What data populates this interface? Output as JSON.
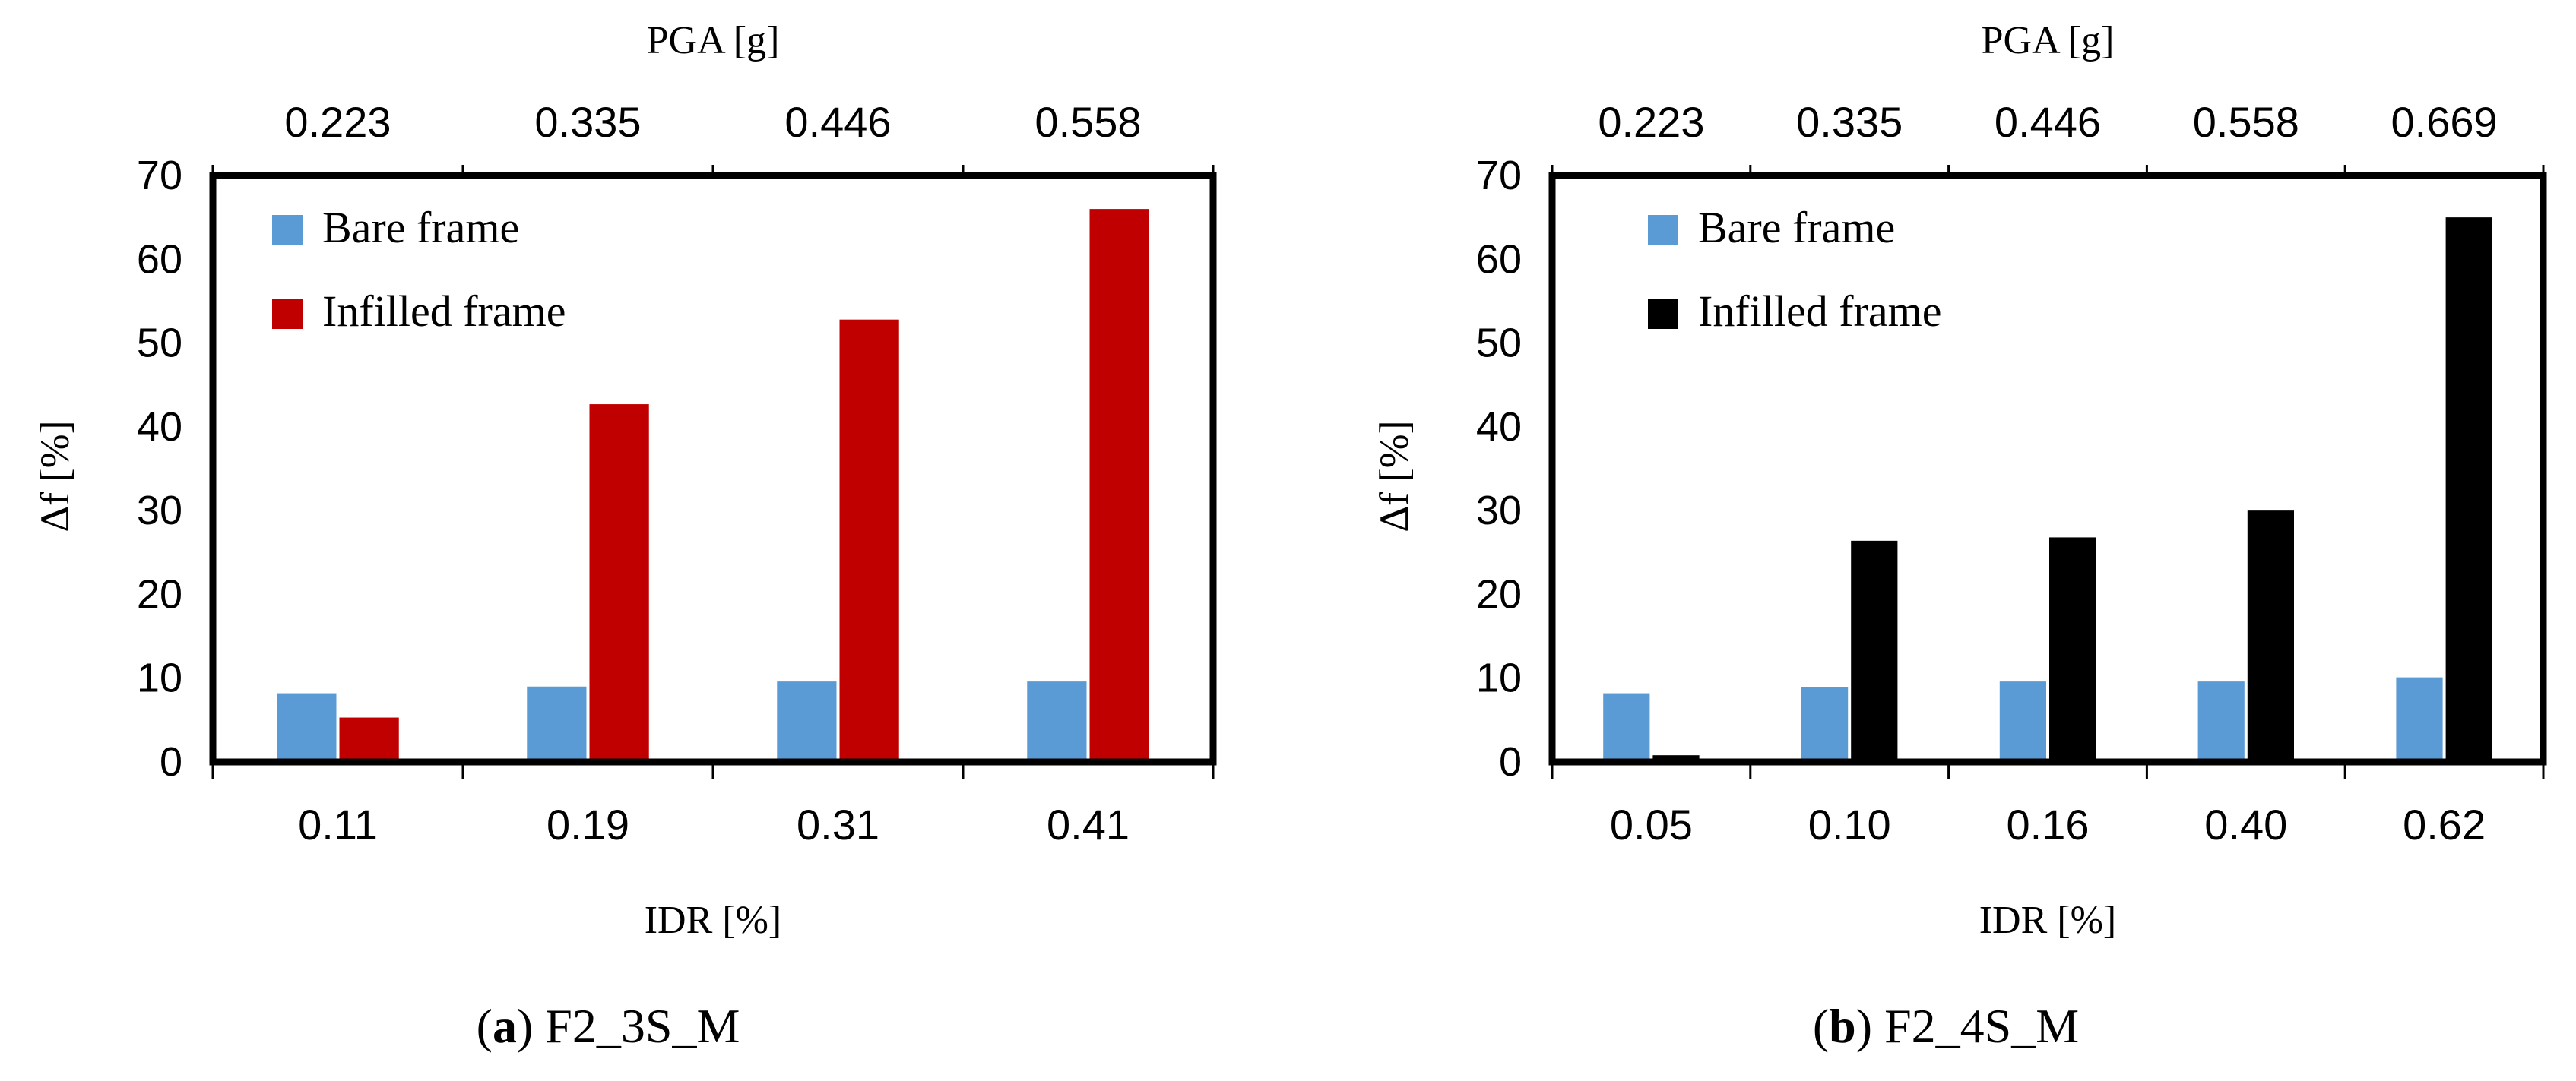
{
  "chart_data": [
    {
      "type": "bar",
      "panel_label": "a",
      "caption": "F2_3S_M",
      "top_axis_title": "PGA [g]",
      "top_tick_labels": [
        "0.223",
        "0.335",
        "0.446",
        "0.558"
      ],
      "xlabel": "IDR [%]",
      "categories": [
        "0.11",
        "0.19",
        "0.31",
        "0.41"
      ],
      "ylabel": "Δf [%]",
      "ylim": [
        0,
        70
      ],
      "yticks": [
        0,
        10,
        20,
        30,
        40,
        50,
        60,
        70
      ],
      "legend_position": "top-left",
      "series": [
        {
          "name": "Bare frame",
          "color": "#5B9BD5",
          "values": [
            8.2,
            9.0,
            9.6,
            9.6
          ]
        },
        {
          "name": "Infilled frame",
          "color": "#C00000",
          "values": [
            5.3,
            42.7,
            52.8,
            66.0
          ]
        }
      ]
    },
    {
      "type": "bar",
      "panel_label": "b",
      "caption": "F2_4S_M",
      "top_axis_title": "PGA [g]",
      "top_tick_labels": [
        "0.223",
        "0.335",
        "0.446",
        "0.558",
        "0.669"
      ],
      "xlabel": "IDR [%]",
      "categories": [
        "0.05",
        "0.10",
        "0.16",
        "0.40",
        "0.62"
      ],
      "ylabel": "Δf [%]",
      "ylim": [
        0,
        70
      ],
      "yticks": [
        0,
        10,
        20,
        30,
        40,
        50,
        60,
        70
      ],
      "legend_position": "top-left",
      "series": [
        {
          "name": "Bare frame",
          "color": "#5B9BD5",
          "values": [
            8.2,
            8.9,
            9.6,
            9.6,
            10.1
          ]
        },
        {
          "name": "Infilled frame",
          "color": "#000000",
          "values": [
            0.8,
            26.4,
            26.8,
            30.0,
            65.0
          ]
        }
      ]
    }
  ]
}
